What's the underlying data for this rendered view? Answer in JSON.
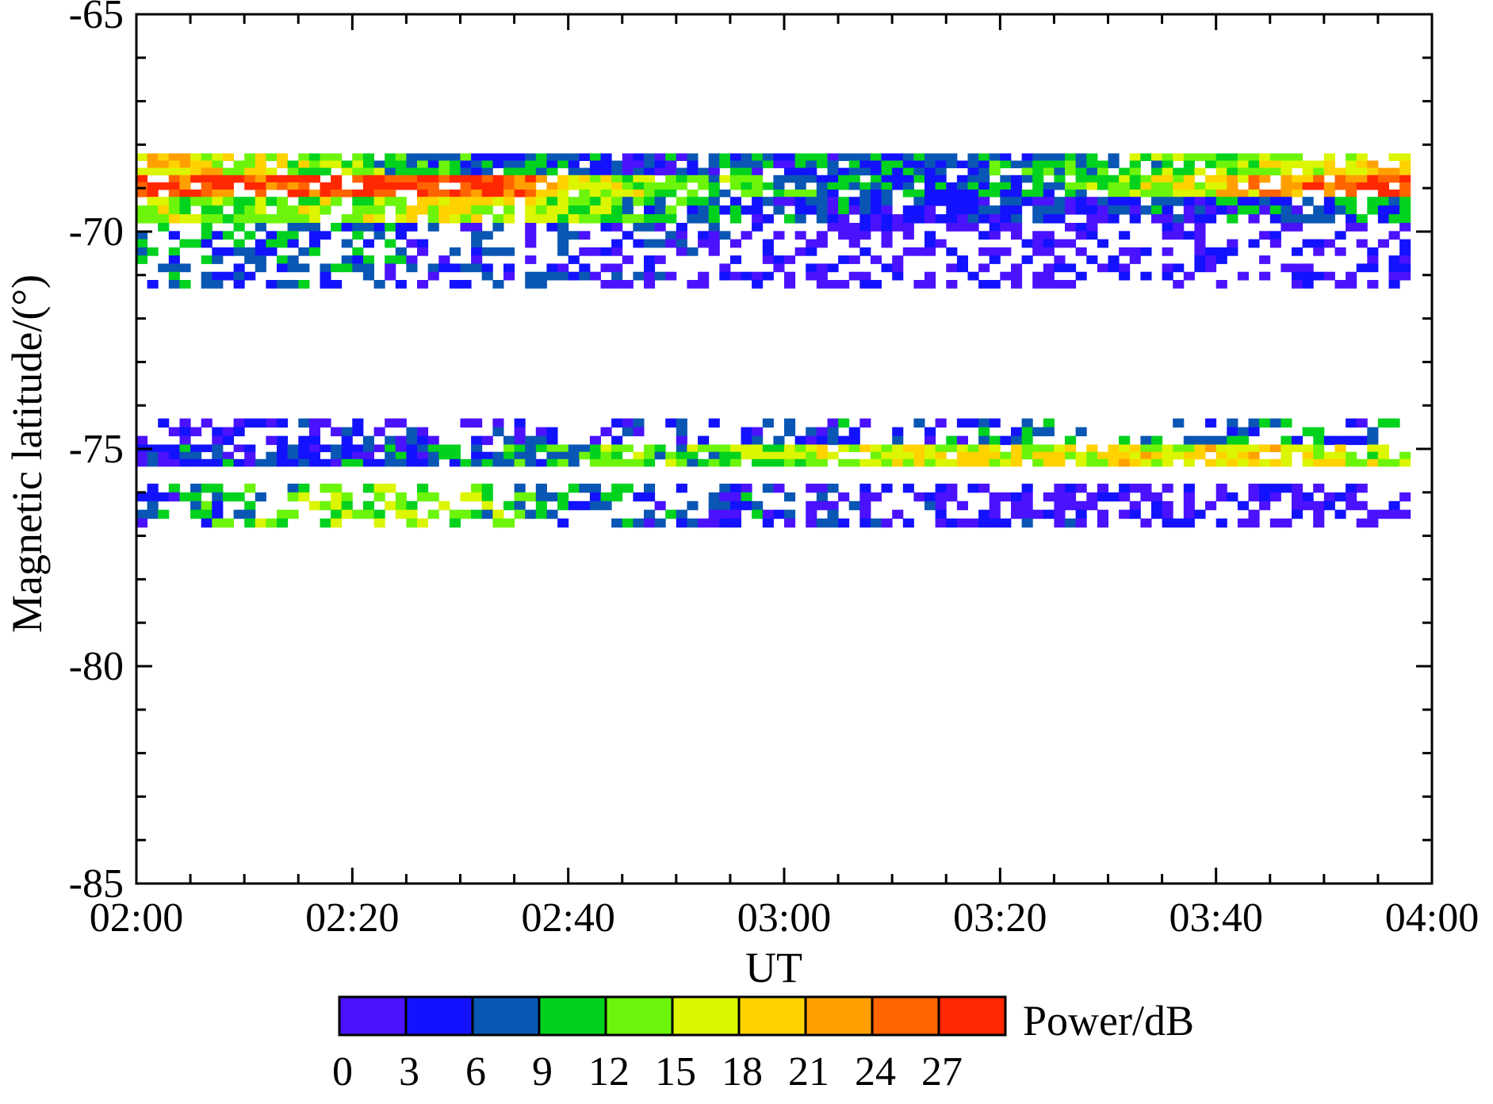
{
  "chart_data": {
    "type": "heatmap",
    "title": "",
    "xlabel": "UT",
    "ylabel": "Magnetic latitude/(°)",
    "x_ticks": [
      "02:00",
      "02:20",
      "02:40",
      "03:00",
      "03:20",
      "03:40",
      "04:00"
    ],
    "x_range_minutes_ut": [
      120,
      240
    ],
    "ylim": [
      -85,
      -65
    ],
    "y_ticks": [
      -65,
      -70,
      -75,
      -80,
      -85
    ],
    "colorbar": {
      "label": "Power/dB",
      "ticks": [
        "0",
        "3",
        "6",
        "9",
        "12",
        "15",
        "18",
        "21",
        "24",
        "27"
      ],
      "colors": [
        "#4a12ff",
        "#1212ff",
        "#0a56b4",
        "#00d21e",
        "#6cf50a",
        "#dcf500",
        "#ffd200",
        "#ffa000",
        "#ff6400",
        "#ff2800"
      ]
    },
    "bands": [
      {
        "lat_top": -68.2,
        "lat_bottom": -68.7,
        "level_profile": [
          [
            0,
            6
          ],
          [
            10,
            5
          ],
          [
            25,
            3
          ],
          [
            45,
            1
          ],
          [
            70,
            2
          ],
          [
            90,
            3
          ],
          [
            100,
            4
          ],
          [
            119,
            6
          ]
        ]
      },
      {
        "lat_top": -68.7,
        "lat_bottom": -69.2,
        "level_profile": [
          [
            0,
            9
          ],
          [
            10,
            8
          ],
          [
            20,
            9
          ],
          [
            30,
            9
          ],
          [
            35,
            8
          ],
          [
            40,
            5
          ],
          [
            50,
            4
          ],
          [
            60,
            3
          ],
          [
            70,
            2
          ],
          [
            80,
            2
          ],
          [
            90,
            4
          ],
          [
            100,
            6
          ],
          [
            110,
            8
          ],
          [
            119,
            9
          ]
        ]
      },
      {
        "lat_top": -69.2,
        "lat_bottom": -69.8,
        "level_profile": [
          [
            0,
            5
          ],
          [
            10,
            4
          ],
          [
            25,
            5
          ],
          [
            35,
            5
          ],
          [
            45,
            3
          ],
          [
            55,
            2
          ],
          [
            70,
            1
          ],
          [
            90,
            1
          ],
          [
            110,
            2
          ],
          [
            119,
            2
          ]
        ]
      },
      {
        "lat_top": -69.8,
        "lat_bottom": -71.3,
        "level_profile": [
          [
            0,
            2
          ],
          [
            15,
            2
          ],
          [
            35,
            1
          ],
          [
            60,
            0
          ],
          [
            119,
            0
          ]
        ]
      },
      {
        "lat_top": -74.3,
        "lat_bottom": -74.9,
        "level_profile": [
          [
            0,
            0
          ],
          [
            40,
            1
          ],
          [
            60,
            1
          ],
          [
            90,
            2
          ],
          [
            105,
            2
          ],
          [
            119,
            1
          ]
        ]
      },
      {
        "lat_top": -74.9,
        "lat_bottom": -75.4,
        "level_profile": [
          [
            0,
            1
          ],
          [
            30,
            2
          ],
          [
            40,
            3
          ],
          [
            55,
            4
          ],
          [
            70,
            5
          ],
          [
            90,
            5
          ],
          [
            100,
            6
          ],
          [
            110,
            5
          ],
          [
            119,
            4
          ]
        ]
      },
      {
        "lat_top": -75.8,
        "lat_bottom": -76.8,
        "level_profile": [
          [
            0,
            1
          ],
          [
            15,
            4
          ],
          [
            30,
            4
          ],
          [
            40,
            2
          ],
          [
            60,
            1
          ],
          [
            90,
            0
          ],
          [
            119,
            0
          ]
        ]
      }
    ]
  }
}
